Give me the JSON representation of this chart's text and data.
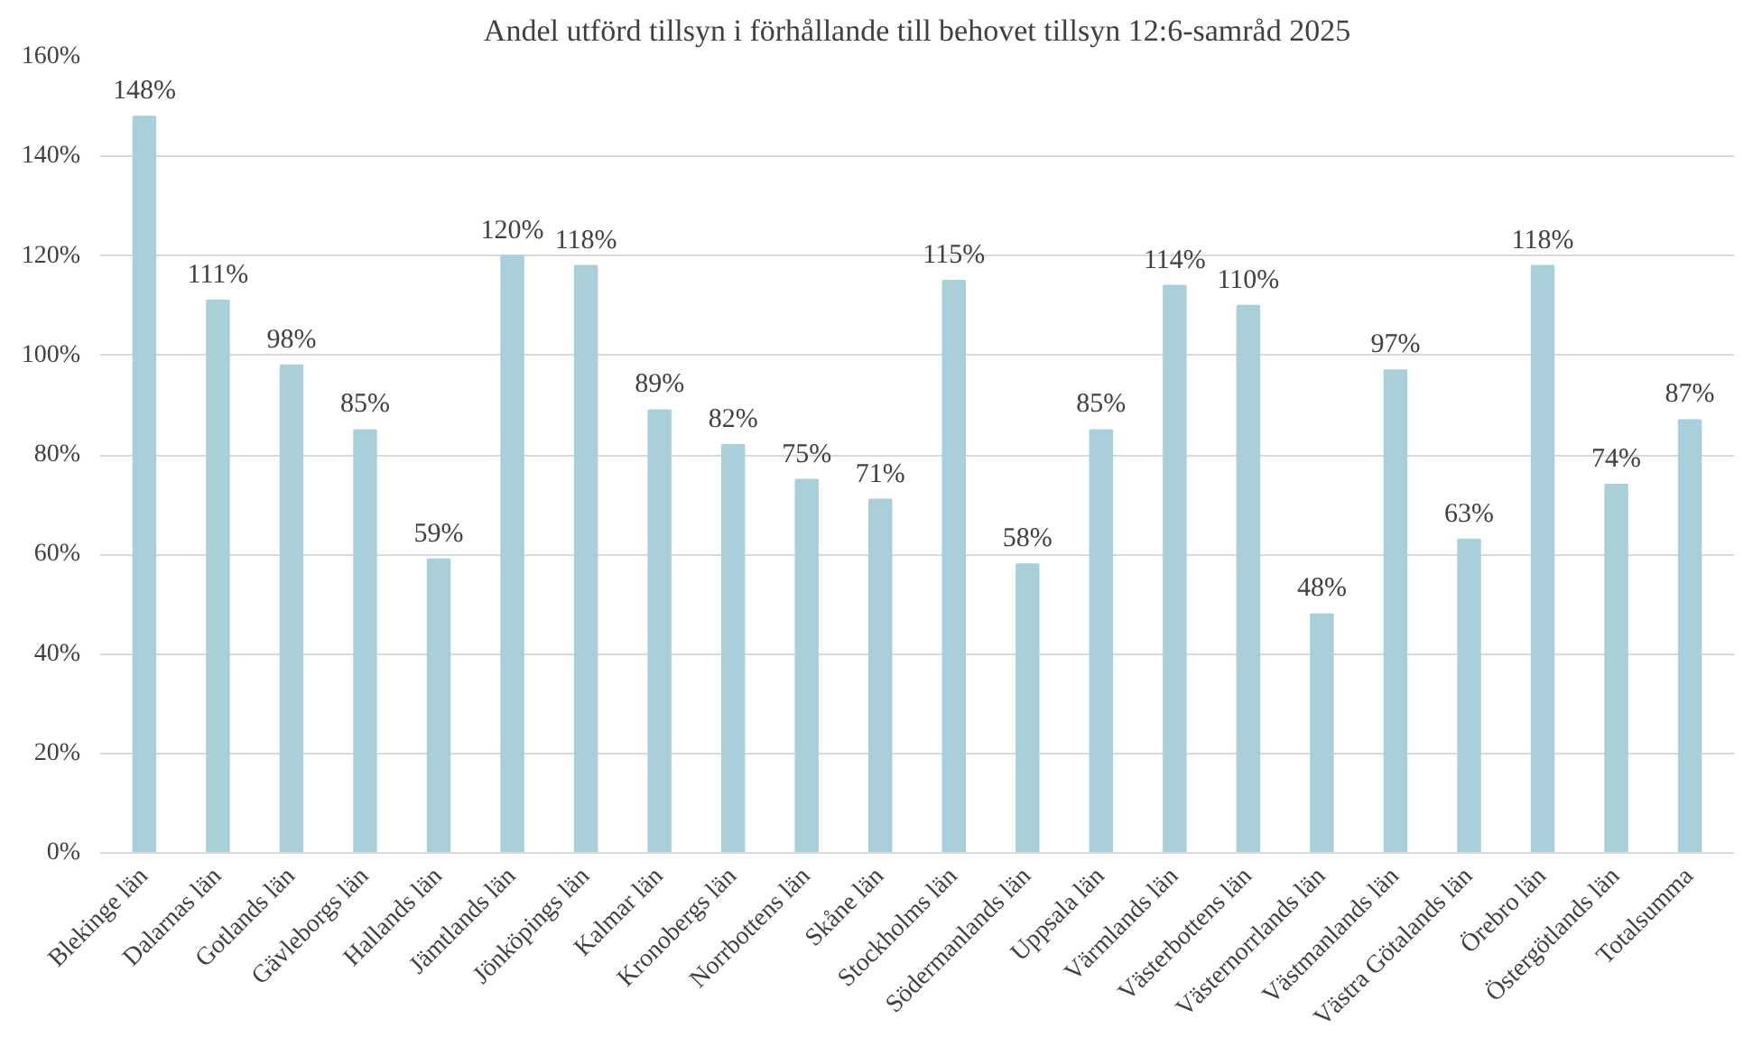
{
  "chart_data": {
    "type": "bar",
    "title": "Andel utförd tillsyn i förhållande till behovet tillsyn 12:6-samråd 2025",
    "categories": [
      "Blekinge län",
      "Dalarnas län",
      "Gotlands län",
      "Gävleborgs län",
      "Hallands län",
      "Jämtlands län",
      "Jönköpings län",
      "Kalmar län",
      "Kronobergs län",
      "Norrbottens län",
      "Skåne län",
      "Stockholms län",
      "Södermanlands län",
      "Uppsala län",
      "Värmlands län",
      "Västerbottens län",
      "Västernorrlands län",
      "Västmanlands län",
      "Västra Götalands län",
      "Örebro län",
      "Östergötlands län",
      "Totalsumma"
    ],
    "values": [
      148,
      111,
      98,
      85,
      59,
      120,
      118,
      89,
      82,
      75,
      71,
      115,
      58,
      85,
      114,
      110,
      48,
      97,
      63,
      118,
      74,
      87
    ],
    "value_labels": [
      "148%",
      "111%",
      "98%",
      "85%",
      "59%",
      "120%",
      "118%",
      "89%",
      "82%",
      "75%",
      "71%",
      "115%",
      "58%",
      "85%",
      "114%",
      "110%",
      "48%",
      "97%",
      "63%",
      "118%",
      "74%",
      "87%"
    ],
    "color": "#a9cfd9",
    "ylim": [
      0,
      160
    ],
    "yticks": [
      {
        "value": 0,
        "label": "0%"
      },
      {
        "value": 20,
        "label": "20%"
      },
      {
        "value": 40,
        "label": "40%"
      },
      {
        "value": 60,
        "label": "60%"
      },
      {
        "value": 80,
        "label": "80%"
      },
      {
        "value": 100,
        "label": "100%"
      },
      {
        "value": 120,
        "label": "120%"
      },
      {
        "value": 140,
        "label": "140%"
      },
      {
        "value": 160,
        "label": "160%"
      }
    ],
    "grid": "y"
  }
}
